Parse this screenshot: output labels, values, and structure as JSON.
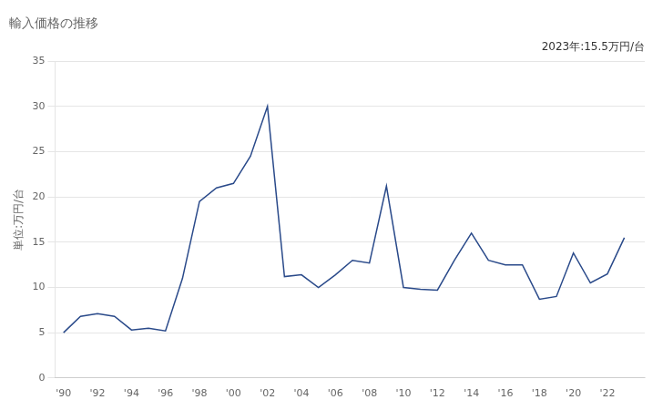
{
  "chart_data": {
    "type": "line",
    "title": "輸入価格の推移",
    "ylabel": "単位:万円/台",
    "annotation": "2023年:15.5万円/台",
    "x": [
      1990,
      1991,
      1992,
      1993,
      1994,
      1995,
      1996,
      1997,
      1998,
      1999,
      2000,
      2001,
      2002,
      2003,
      2004,
      2005,
      2006,
      2007,
      2008,
      2009,
      2010,
      2011,
      2012,
      2013,
      2014,
      2015,
      2016,
      2017,
      2018,
      2019,
      2020,
      2021,
      2022,
      2023
    ],
    "values": [
      5.0,
      6.8,
      7.1,
      6.8,
      5.3,
      5.5,
      5.2,
      11.0,
      19.5,
      21.0,
      21.5,
      24.5,
      30.0,
      11.2,
      11.4,
      10.0,
      11.4,
      13.0,
      12.7,
      21.2,
      10.0,
      9.8,
      9.7,
      13.0,
      16.0,
      13.0,
      12.5,
      12.5,
      8.7,
      9.0,
      13.8,
      10.5,
      11.5,
      15.5
    ],
    "color": "#2a4a8a",
    "xlim": [
      1989.5,
      2024.2
    ],
    "xticks": [
      {
        "value": 1990,
        "label": "'90"
      },
      {
        "value": 1992,
        "label": "'92"
      },
      {
        "value": 1994,
        "label": "'94"
      },
      {
        "value": 1996,
        "label": "'96"
      },
      {
        "value": 1998,
        "label": "'98"
      },
      {
        "value": 2000,
        "label": "'00"
      },
      {
        "value": 2002,
        "label": "'02"
      },
      {
        "value": 2004,
        "label": "'04"
      },
      {
        "value": 2006,
        "label": "'06"
      },
      {
        "value": 2008,
        "label": "'08"
      },
      {
        "value": 2010,
        "label": "'10"
      },
      {
        "value": 2012,
        "label": "'12"
      },
      {
        "value": 2014,
        "label": "'14"
      },
      {
        "value": 2016,
        "label": "'16"
      },
      {
        "value": 2018,
        "label": "'18"
      },
      {
        "value": 2020,
        "label": "'20"
      },
      {
        "value": 2022,
        "label": "'22"
      }
    ],
    "ylim": [
      0,
      35
    ],
    "yticks": [
      0,
      5,
      10,
      15,
      20,
      25,
      30,
      35
    ],
    "grid": "y"
  }
}
